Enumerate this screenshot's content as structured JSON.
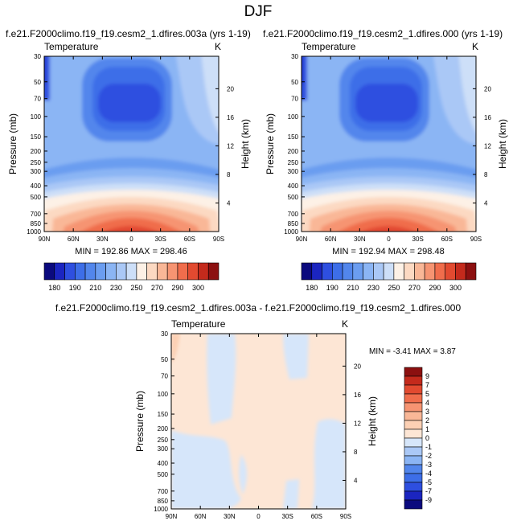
{
  "page": {
    "title": "DJF"
  },
  "palette": {
    "abs": [
      "#0b0a7e",
      "#1b25c0",
      "#2e4fe0",
      "#3d6ee8",
      "#5286ec",
      "#6b9df0",
      "#8bb5f4",
      "#aac8f6",
      "#cddff8",
      "#fdf1e6",
      "#fcd9c2",
      "#f9b797",
      "#f69472",
      "#f06d4c",
      "#e24a30",
      "#c42a1c",
      "#8c1010"
    ],
    "diff": [
      "#0b0a7e",
      "#1b25c0",
      "#2e4fe0",
      "#3d6ee8",
      "#5286ec",
      "#8bb5f4",
      "#aac8f6",
      "#d6e6fa",
      "#fde6d5",
      "#fcd0b4",
      "#f9b797",
      "#f69472",
      "#f06d4c",
      "#e24a30",
      "#c42a1c",
      "#8c1010"
    ]
  },
  "chart_data": [
    {
      "type": "heatmap",
      "title": "f.e21.F2000climo.f19_f19.cesm2_1.dfires.003a (yrs 1-19)",
      "subtitle_left": "Temperature",
      "subtitle_right": "K",
      "xlabel": "",
      "ylabel": "Pressure (mb)",
      "ylabel_right": "Height (km)",
      "x_ticks": [
        "90N",
        "60N",
        "30N",
        "0",
        "30S",
        "60S",
        "90S"
      ],
      "y_ticks": [
        "30",
        "50",
        "70",
        "100",
        "150",
        "200",
        "250",
        "300",
        "400",
        "500",
        "700",
        "850",
        "1000"
      ],
      "y_right_ticks": [
        "4",
        "8",
        "12",
        "16",
        "20"
      ],
      "min_max_label": "MIN = 192.86  MAX = 298.46",
      "colorbar_labels": [
        "180",
        "190",
        "210",
        "230",
        "250",
        "270",
        "290",
        "300"
      ],
      "field": "zonal-mean temperature"
    },
    {
      "type": "heatmap",
      "title": "f.e21.F2000climo.f19_f19.cesm2_1.dfires.000 (yrs 1-19)",
      "subtitle_left": "Temperature",
      "subtitle_right": "K",
      "xlabel": "",
      "ylabel": "Pressure (mb)",
      "ylabel_right": "Height (km)",
      "x_ticks": [
        "90N",
        "60N",
        "30N",
        "0",
        "30S",
        "60S",
        "90S"
      ],
      "y_ticks": [
        "30",
        "50",
        "70",
        "100",
        "150",
        "200",
        "250",
        "300",
        "400",
        "500",
        "700",
        "850",
        "1000"
      ],
      "y_right_ticks": [
        "4",
        "8",
        "12",
        "16",
        "20"
      ],
      "min_max_label": "MIN = 192.94  MAX = 298.48",
      "colorbar_labels": [
        "180",
        "190",
        "210",
        "230",
        "250",
        "270",
        "290",
        "300"
      ],
      "field": "zonal-mean temperature"
    },
    {
      "type": "heatmap",
      "title": "f.e21.F2000climo.f19_f19.cesm2_1.dfires.003a - f.e21.F2000climo.f19_f19.cesm2_1.dfires.000",
      "subtitle_left": "Temperature",
      "subtitle_right": "K",
      "xlabel": "",
      "ylabel": "Pressure (mb)",
      "ylabel_right": "Height (km)",
      "x_ticks": [
        "90N",
        "60N",
        "30N",
        "0",
        "30S",
        "60S",
        "90S"
      ],
      "y_ticks": [
        "30",
        "50",
        "70",
        "100",
        "150",
        "200",
        "250",
        "300",
        "400",
        "500",
        "700",
        "850",
        "1000"
      ],
      "y_right_ticks": [
        "4",
        "8",
        "12",
        "16",
        "20"
      ],
      "min_max_label": "MIN = -3.41  MAX =  3.87",
      "colorbar_labels": [
        "9",
        "7",
        "5",
        "4",
        "3",
        "2",
        "1",
        "0",
        "-1",
        "-2",
        "-3",
        "-4",
        "-5",
        "-7",
        "-9"
      ],
      "field": "temperature difference"
    }
  ]
}
